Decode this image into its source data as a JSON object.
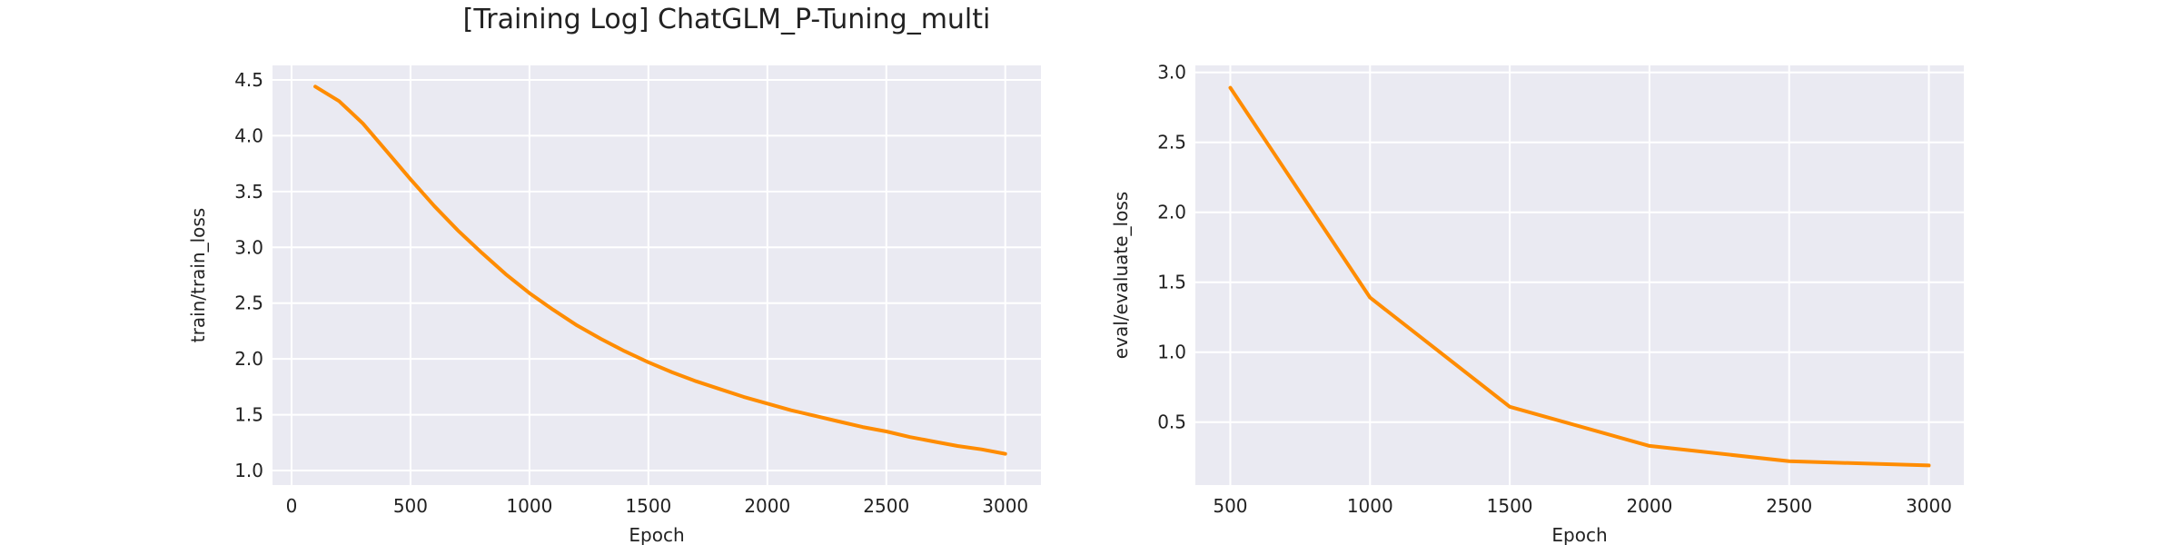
{
  "title": "[Training Log] ChatGLM_P-Tuning_multi",
  "chart_data": [
    {
      "type": "line",
      "xlabel": "Epoch",
      "ylabel": "train/train_loss",
      "xlim": [
        -80,
        3150
      ],
      "ylim": [
        0.87,
        4.63
      ],
      "xticks": [
        0,
        500,
        1000,
        1500,
        2000,
        2500,
        3000
      ],
      "yticks": [
        1.0,
        1.5,
        2.0,
        2.5,
        3.0,
        3.5,
        4.0,
        4.5
      ],
      "grid": true,
      "line_color": "#ff8c00",
      "series": [
        {
          "x": [
            100,
            200,
            300,
            400,
            500,
            600,
            700,
            800,
            900,
            1000,
            1100,
            1200,
            1300,
            1400,
            1500,
            1600,
            1700,
            1800,
            1900,
            2000,
            2100,
            2200,
            2300,
            2400,
            2500,
            2600,
            2700,
            2800,
            2900,
            3000
          ],
          "y": [
            4.44,
            4.31,
            4.11,
            3.86,
            3.61,
            3.37,
            3.15,
            2.95,
            2.76,
            2.59,
            2.44,
            2.3,
            2.18,
            2.07,
            1.97,
            1.88,
            1.8,
            1.73,
            1.66,
            1.6,
            1.54,
            1.49,
            1.44,
            1.39,
            1.35,
            1.3,
            1.26,
            1.22,
            1.19,
            1.15
          ]
        }
      ]
    },
    {
      "type": "line",
      "xlabel": "Epoch",
      "ylabel": "eval/evaluate_loss",
      "xlim": [
        375,
        3125
      ],
      "ylim": [
        0.05,
        3.05
      ],
      "xticks": [
        500,
        1000,
        1500,
        2000,
        2500,
        3000
      ],
      "yticks": [
        0.5,
        1.0,
        1.5,
        2.0,
        2.5,
        3.0
      ],
      "grid": true,
      "line_color": "#ff8c00",
      "series": [
        {
          "x": [
            500,
            1000,
            1500,
            2000,
            2500,
            3000
          ],
          "y": [
            2.89,
            1.39,
            0.61,
            0.33,
            0.22,
            0.19
          ]
        }
      ]
    }
  ]
}
